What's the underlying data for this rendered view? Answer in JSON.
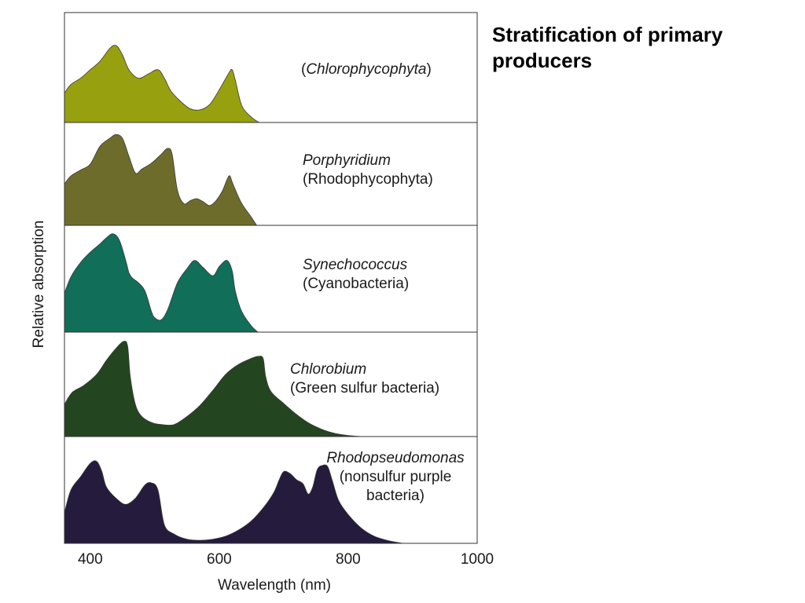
{
  "title": "Stratification of primary producers",
  "chart_data": {
    "type": "area",
    "xlabel": "Wavelength (nm)",
    "ylabel": "Relative absorption",
    "xlim": [
      360,
      1000
    ],
    "xticks": [
      {
        "value": 400,
        "label": "400"
      },
      {
        "value": 600,
        "label": "600"
      },
      {
        "value": 800,
        "label": "800"
      },
      {
        "value": 1000,
        "label": "1000"
      }
    ],
    "grid": false,
    "legend": "none",
    "panels": [
      {
        "label_lines": [
          {
            "parts": [
              {
                "text": "(",
                "italic": false
              },
              {
                "text": "Chlorophycophyta",
                "italic": true
              },
              {
                "text": ")",
                "italic": false
              }
            ]
          }
        ],
        "color": "#97a00e",
        "x": [
          360,
          370,
          385,
          400,
          415,
          430,
          440,
          450,
          460,
          475,
          490,
          505,
          515,
          525,
          540,
          555,
          570,
          585,
          600,
          615,
          620,
          625,
          635,
          650,
          662
        ],
        "y": [
          0.28,
          0.36,
          0.42,
          0.5,
          0.58,
          0.7,
          0.73,
          0.64,
          0.5,
          0.42,
          0.46,
          0.5,
          0.42,
          0.3,
          0.2,
          0.13,
          0.12,
          0.17,
          0.31,
          0.47,
          0.5,
          0.4,
          0.16,
          0.05,
          0.0
        ]
      },
      {
        "label_lines": [
          {
            "parts": [
              {
                "text": "Porphyridium",
                "italic": true
              }
            ]
          },
          {
            "parts": [
              {
                "text": "(Rhodophycophyta)",
                "italic": false
              }
            ]
          }
        ],
        "color": "#6d6c2b",
        "x": [
          360,
          370,
          385,
          400,
          415,
          430,
          440,
          450,
          460,
          470,
          480,
          495,
          510,
          520,
          527,
          535,
          545,
          555,
          565,
          575,
          585,
          595,
          605,
          615,
          620,
          625,
          635,
          650,
          658
        ],
        "y": [
          0.42,
          0.5,
          0.56,
          0.62,
          0.8,
          0.88,
          0.92,
          0.88,
          0.7,
          0.53,
          0.57,
          0.63,
          0.72,
          0.78,
          0.72,
          0.36,
          0.22,
          0.25,
          0.27,
          0.24,
          0.2,
          0.25,
          0.35,
          0.5,
          0.44,
          0.36,
          0.22,
          0.08,
          0.0
        ]
      },
      {
        "label_lines": [
          {
            "parts": [
              {
                "text": "Synechococcus",
                "italic": true
              }
            ]
          },
          {
            "parts": [
              {
                "text": "(Cyanobacteria)",
                "italic": false
              }
            ]
          }
        ],
        "color": "#106e59",
        "x": [
          360,
          370,
          385,
          400,
          415,
          425,
          435,
          445,
          455,
          460,
          465,
          475,
          485,
          495,
          500,
          510,
          520,
          535,
          550,
          562,
          575,
          590,
          600,
          612,
          620,
          625,
          635,
          650,
          660
        ],
        "y": [
          0.38,
          0.54,
          0.68,
          0.78,
          0.86,
          0.92,
          0.96,
          0.9,
          0.7,
          0.58,
          0.53,
          0.48,
          0.4,
          0.2,
          0.14,
          0.12,
          0.22,
          0.48,
          0.62,
          0.7,
          0.63,
          0.55,
          0.64,
          0.7,
          0.6,
          0.4,
          0.2,
          0.06,
          0.0
        ]
      },
      {
        "label_lines": [
          {
            "parts": [
              {
                "text": "Chlorobium",
                "italic": true
              }
            ]
          },
          {
            "parts": [
              {
                "text": "(Green sulfur bacteria)",
                "italic": false
              }
            ]
          }
        ],
        "color": "#23451f",
        "x": [
          360,
          372,
          390,
          410,
          425,
          440,
          452,
          458,
          462,
          470,
          480,
          495,
          510,
          530,
          550,
          570,
          590,
          610,
          630,
          650,
          660,
          668,
          672,
          680,
          700,
          720,
          740,
          760,
          780,
          800,
          820
        ],
        "y": [
          0.32,
          0.44,
          0.51,
          0.62,
          0.76,
          0.88,
          0.95,
          0.9,
          0.6,
          0.32,
          0.2,
          0.14,
          0.12,
          0.12,
          0.2,
          0.31,
          0.46,
          0.62,
          0.72,
          0.78,
          0.8,
          0.78,
          0.6,
          0.45,
          0.33,
          0.22,
          0.13,
          0.07,
          0.03,
          0.01,
          0.0
        ]
      },
      {
        "label_lines": [
          {
            "parts": [
              {
                "text": "Rhodopseudomonas",
                "italic": true
              }
            ]
          },
          {
            "parts": [
              {
                "text": "(nonsulfur purple",
                "italic": false
              }
            ]
          },
          {
            "parts": [
              {
                "text": "bacteria)",
                "italic": false
              }
            ]
          }
        ],
        "color": "#241b3d",
        "x": [
          360,
          370,
          385,
          400,
          410,
          418,
          425,
          440,
          455,
          470,
          485,
          495,
          505,
          515,
          530,
          550,
          570,
          590,
          610,
          630,
          650,
          670,
          685,
          693,
          700,
          710,
          720,
          730,
          738,
          745,
          752,
          760,
          768,
          775,
          785,
          800,
          820,
          840,
          860,
          875,
          885
        ],
        "y": [
          0.3,
          0.52,
          0.65,
          0.78,
          0.8,
          0.7,
          0.55,
          0.44,
          0.38,
          0.44,
          0.57,
          0.59,
          0.52,
          0.18,
          0.09,
          0.04,
          0.03,
          0.04,
          0.07,
          0.13,
          0.22,
          0.36,
          0.5,
          0.62,
          0.7,
          0.68,
          0.62,
          0.58,
          0.48,
          0.55,
          0.72,
          0.76,
          0.75,
          0.62,
          0.42,
          0.28,
          0.15,
          0.07,
          0.03,
          0.01,
          0.0
        ]
      }
    ]
  }
}
